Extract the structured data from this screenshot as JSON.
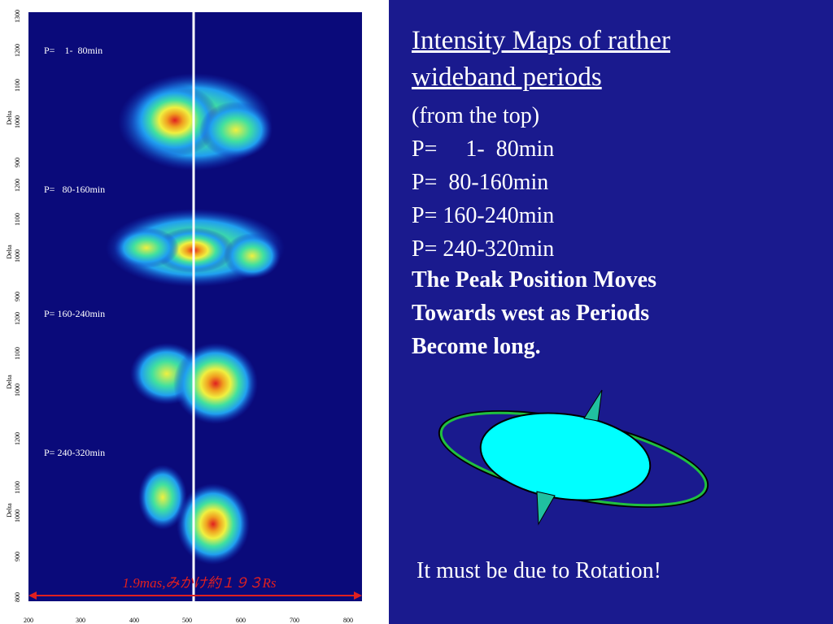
{
  "left_panel": {
    "maps": [
      {
        "label": "P=    1-  80min",
        "y_ticks": [
          "1300",
          "1200",
          "1100",
          "1000",
          "900"
        ],
        "axis_label": "Delta"
      },
      {
        "label": "P=   80-160min",
        "y_ticks": [
          "1200",
          "1100",
          "1000",
          "900"
        ],
        "axis_label": "Delta"
      },
      {
        "label": "P= 160-240min",
        "y_ticks": [
          "1200",
          "1100",
          "1000"
        ],
        "axis_label": "Delta"
      },
      {
        "label": "P= 240-320min",
        "y_ticks": [
          "1200",
          "1100",
          "1000",
          "900",
          "800"
        ],
        "axis_label": "Delta"
      }
    ],
    "x_ticks": [
      "200",
      "300",
      "400",
      "500",
      "600",
      "700",
      "800"
    ],
    "annotation": "1.9mas,みかけ約１９３Rs"
  },
  "right_panel": {
    "title": "Intensity Maps of rather wideband periods",
    "lines": [
      "(from the top)",
      "P=     1-  80min",
      "P=  80-160min",
      "P= 160-240min",
      "P= 240-320min"
    ],
    "conclusion": "The Peak Position Moves Towards west as Periods Become long.",
    "footer": "It must be due to Rotation!"
  }
}
